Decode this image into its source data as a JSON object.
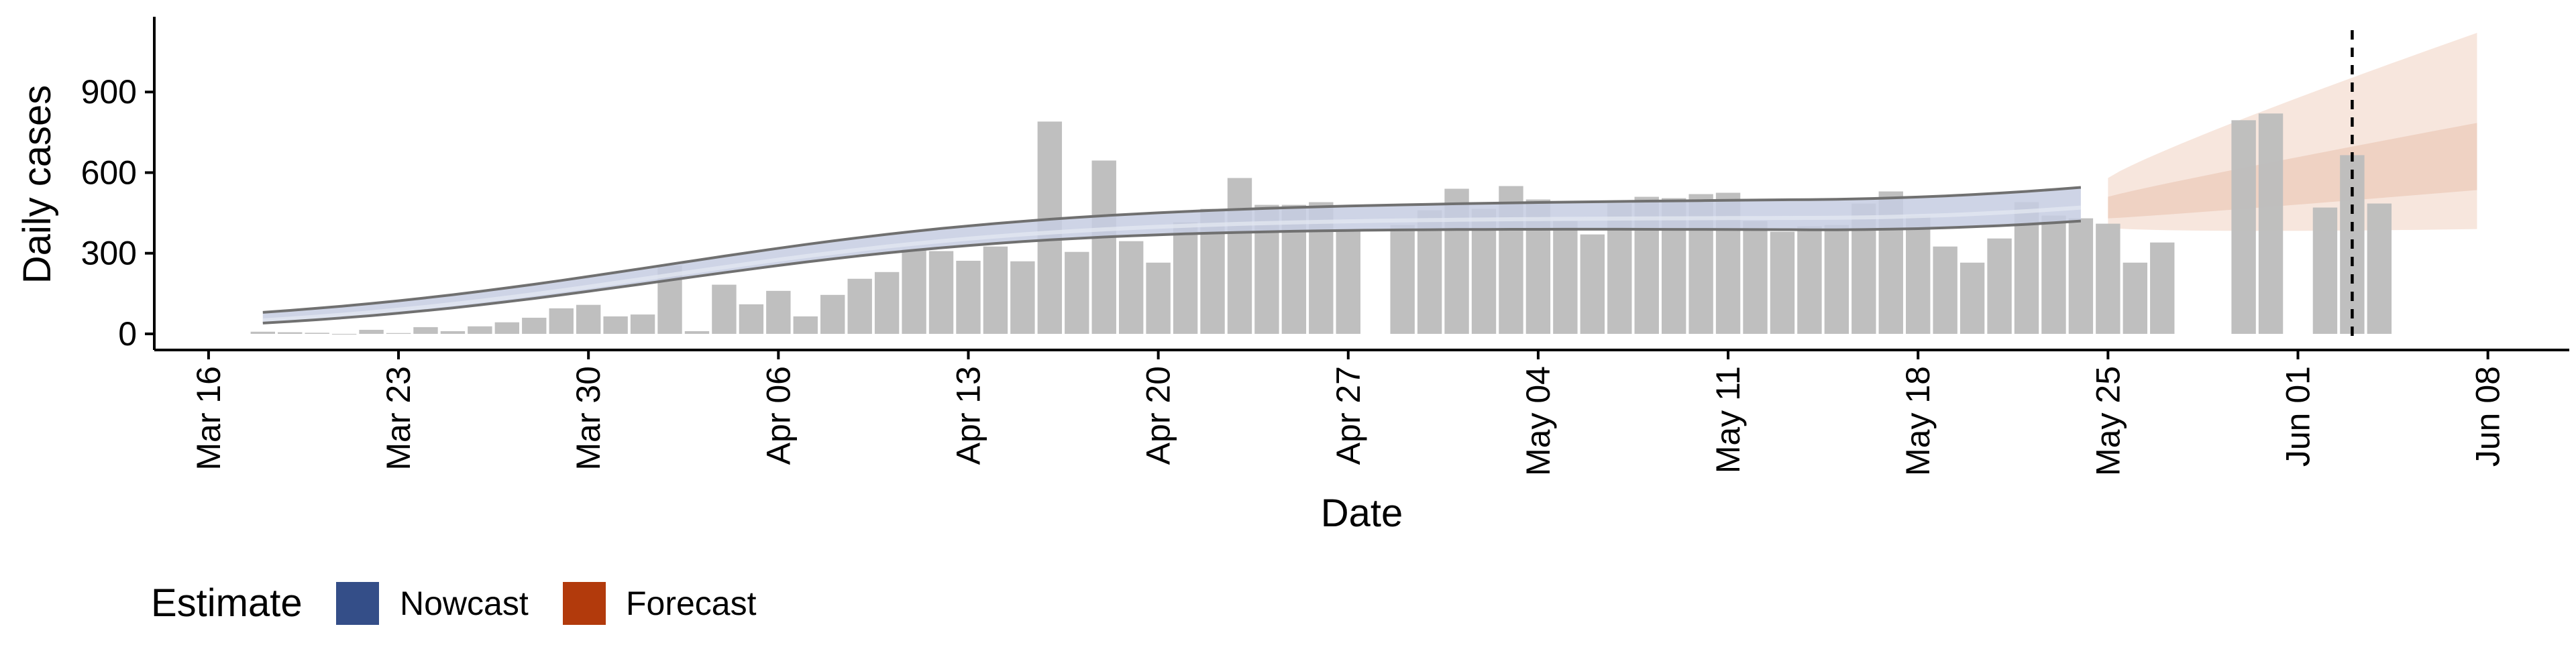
{
  "chart_data": {
    "type": "bar",
    "title": "",
    "xlabel": "Date",
    "ylabel": "Daily cases",
    "x_tick_labels": [
      "Mar 16",
      "Mar 23",
      "Mar 30",
      "Apr 06",
      "Apr 13",
      "Apr 20",
      "Apr 27",
      "May 04",
      "May 11",
      "May 18",
      "May 25",
      "Jun 01",
      "Jun 08"
    ],
    "x_tick_dates": [
      "2020-03-16",
      "2020-03-23",
      "2020-03-30",
      "2020-04-06",
      "2020-04-13",
      "2020-04-20",
      "2020-04-27",
      "2020-05-04",
      "2020-05-11",
      "2020-05-18",
      "2020-05-25",
      "2020-06-01",
      "2020-06-08"
    ],
    "y_ticks": [
      0,
      300,
      600,
      900
    ],
    "y_tick_labels": [
      "0",
      "300",
      "600",
      "900"
    ],
    "xlim": [
      "2020-03-14",
      "2020-06-11"
    ],
    "ylim": [
      -60,
      1180
    ],
    "grid": false,
    "legend_position": "bottom-left",
    "reported_cases": {
      "start_date": "2020-03-18",
      "values": [
        8,
        6,
        4,
        0,
        15,
        3,
        25,
        10,
        28,
        43,
        60,
        95,
        108,
        65,
        72,
        255,
        10,
        183,
        110,
        160,
        65,
        145,
        205,
        230,
        315,
        308,
        272,
        325,
        270,
        790,
        305,
        645,
        345,
        265,
        415,
        465,
        580,
        480,
        480,
        490,
        390,
        null,
        405,
        460,
        540,
        465,
        550,
        500,
        420,
        370,
        485,
        510,
        505,
        520,
        525,
        420,
        380,
        400,
        405,
        485,
        530,
        440,
        325,
        265,
        355,
        490,
        440,
        430,
        410,
        265,
        340,
        null,
        null,
        795,
        820,
        null,
        470,
        665,
        485
      ]
    },
    "nowcast": {
      "start_date": "2020-03-18",
      "end_date": "2020-05-24",
      "median_start": 50,
      "median_end": 470,
      "outer_start": [
        40,
        80
      ],
      "outer_end": [
        420,
        545
      ]
    },
    "forecast": {
      "start_date": "2020-05-25",
      "end_date": "2020-06-07",
      "median_start": 460,
      "median_end": 620,
      "inner_start": [
        430,
        510
      ],
      "inner_end": [
        535,
        785
      ],
      "outer_start": [
        395,
        580
      ],
      "outer_end": [
        390,
        1120
      ]
    },
    "reference_line": {
      "date": "2020-06-03",
      "style": "dashed"
    },
    "legend": {
      "title": "Estimate",
      "entries": [
        {
          "label": "Nowcast",
          "color": "#344e88"
        },
        {
          "label": "Forecast",
          "color": "#b23a0c"
        }
      ]
    },
    "colors": {
      "bars": "#bdbdbd",
      "nowcast_band": "#c6cde2",
      "forecast_outer": "#f7e6dd",
      "forecast_inner": "#efd2c3",
      "band_edges": "#707070",
      "axes": "#000000"
    }
  }
}
